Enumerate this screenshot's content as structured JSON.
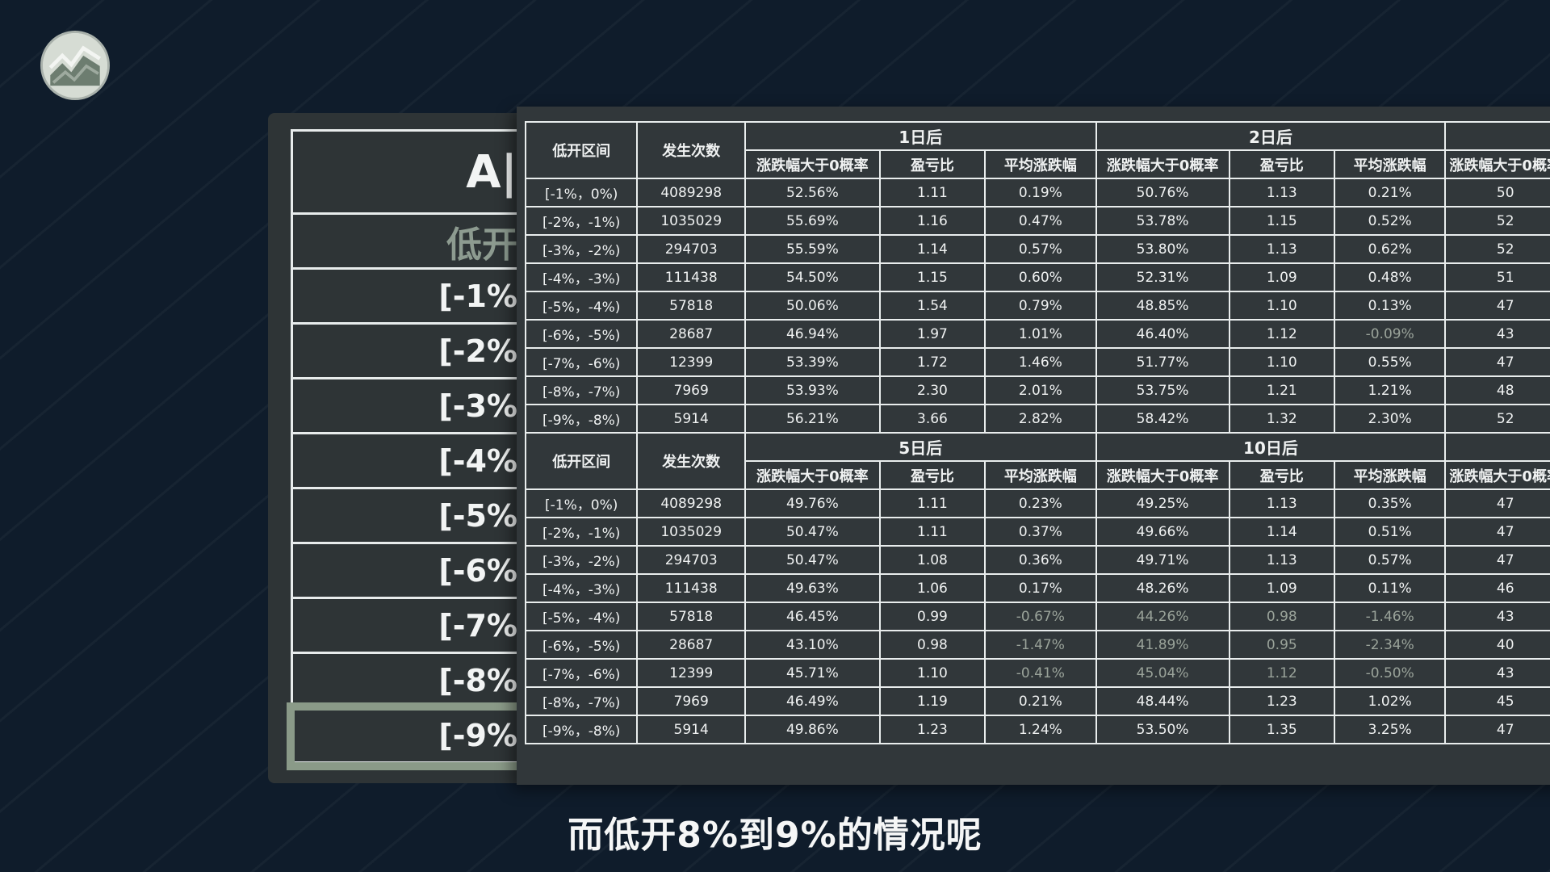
{
  "colors": {
    "background": "#0f1c2b",
    "panel": "#31373a",
    "grid": "#e9eded",
    "highlight": "#8a9a88",
    "negative_text": "#9aa39a"
  },
  "logo": {
    "icon": "chart-logo-icon"
  },
  "back_table": {
    "title": "A|",
    "subtitle": "低开",
    "rows": [
      "[-1%",
      "[-2%",
      "[-3%",
      "[-4%",
      "[-5%",
      "[-6%",
      "[-7%",
      "[-8%",
      "[-9%"
    ],
    "highlighted_row": 8
  },
  "front_table": {
    "col_interval": "低开区间",
    "col_count": "发生次数",
    "sub_cols": [
      "涨跌幅大于0概率",
      "盈亏比",
      "平均涨跌幅"
    ],
    "top_groups": [
      "1日后",
      "2日后"
    ],
    "bottom_groups": [
      "5日后",
      "10日后"
    ],
    "top_rows": [
      {
        "interval": "[-1%，0%)",
        "count": "4089298",
        "g1": [
          "52.56%",
          "1.11",
          "0.19%"
        ],
        "g2": [
          "50.76%",
          "1.13",
          "0.21%"
        ],
        "g3": "50"
      },
      {
        "interval": "[-2%，-1%)",
        "count": "1035029",
        "g1": [
          "55.69%",
          "1.16",
          "0.47%"
        ],
        "g2": [
          "53.78%",
          "1.15",
          "0.52%"
        ],
        "g3": "52"
      },
      {
        "interval": "[-3%，-2%)",
        "count": "294703",
        "g1": [
          "55.59%",
          "1.14",
          "0.57%"
        ],
        "g2": [
          "53.80%",
          "1.13",
          "0.62%"
        ],
        "g3": "52"
      },
      {
        "interval": "[-4%，-3%)",
        "count": "111438",
        "g1": [
          "54.50%",
          "1.15",
          "0.60%"
        ],
        "g2": [
          "52.31%",
          "1.09",
          "0.48%"
        ],
        "g3": "51"
      },
      {
        "interval": "[-5%，-4%)",
        "count": "57818",
        "g1": [
          "50.06%",
          "1.54",
          "0.79%"
        ],
        "g2": [
          "48.85%",
          "1.10",
          "0.13%"
        ],
        "g3": "47"
      },
      {
        "interval": "[-6%，-5%)",
        "count": "28687",
        "g1": [
          "46.94%",
          "1.97",
          "1.01%"
        ],
        "g2": [
          "46.40%",
          "1.12",
          "-0.09%"
        ],
        "g3": "43"
      },
      {
        "interval": "[-7%，-6%)",
        "count": "12399",
        "g1": [
          "53.39%",
          "1.72",
          "1.46%"
        ],
        "g2": [
          "51.77%",
          "1.10",
          "0.55%"
        ],
        "g3": "47"
      },
      {
        "interval": "[-8%，-7%)",
        "count": "7969",
        "g1": [
          "53.93%",
          "2.30",
          "2.01%"
        ],
        "g2": [
          "53.75%",
          "1.21",
          "1.21%"
        ],
        "g3": "48"
      },
      {
        "interval": "[-9%，-8%)",
        "count": "5914",
        "g1": [
          "56.21%",
          "3.66",
          "2.82%"
        ],
        "g2": [
          "58.42%",
          "1.32",
          "2.30%"
        ],
        "g3": "52"
      }
    ],
    "bottom_rows": [
      {
        "interval": "[-1%，0%)",
        "count": "4089298",
        "g1": [
          "49.76%",
          "1.11",
          "0.23%"
        ],
        "g2": [
          "49.25%",
          "1.13",
          "0.35%"
        ],
        "g3": "47"
      },
      {
        "interval": "[-2%，-1%)",
        "count": "1035029",
        "g1": [
          "50.47%",
          "1.11",
          "0.37%"
        ],
        "g2": [
          "49.66%",
          "1.14",
          "0.51%"
        ],
        "g3": "47"
      },
      {
        "interval": "[-3%，-2%)",
        "count": "294703",
        "g1": [
          "50.47%",
          "1.08",
          "0.36%"
        ],
        "g2": [
          "49.71%",
          "1.13",
          "0.57%"
        ],
        "g3": "47"
      },
      {
        "interval": "[-4%，-3%)",
        "count": "111438",
        "g1": [
          "49.63%",
          "1.06",
          "0.17%"
        ],
        "g2": [
          "48.26%",
          "1.09",
          "0.11%"
        ],
        "g3": "46"
      },
      {
        "interval": "[-5%，-4%)",
        "count": "57818",
        "g1": [
          "46.45%",
          "0.99",
          "-0.67%"
        ],
        "g2": [
          "44.26%",
          "0.98",
          "-1.46%"
        ],
        "g3": "43"
      },
      {
        "interval": "[-6%，-5%)",
        "count": "28687",
        "g1": [
          "43.10%",
          "0.98",
          "-1.47%"
        ],
        "g2": [
          "41.89%",
          "0.95",
          "-2.34%"
        ],
        "g3": "40"
      },
      {
        "interval": "[-7%，-6%)",
        "count": "12399",
        "g1": [
          "45.71%",
          "1.10",
          "-0.41%"
        ],
        "g2": [
          "45.04%",
          "1.12",
          "-0.50%"
        ],
        "g3": "43"
      },
      {
        "interval": "[-8%，-7%)",
        "count": "7969",
        "g1": [
          "46.49%",
          "1.19",
          "0.21%"
        ],
        "g2": [
          "48.44%",
          "1.23",
          "1.02%"
        ],
        "g3": "45"
      },
      {
        "interval": "[-9%，-8%)",
        "count": "5914",
        "g1": [
          "49.86%",
          "1.23",
          "1.24%"
        ],
        "g2": [
          "53.50%",
          "1.35",
          "3.25%"
        ],
        "g3": "47"
      }
    ]
  },
  "caption": "而低开8%到9%的情况呢"
}
